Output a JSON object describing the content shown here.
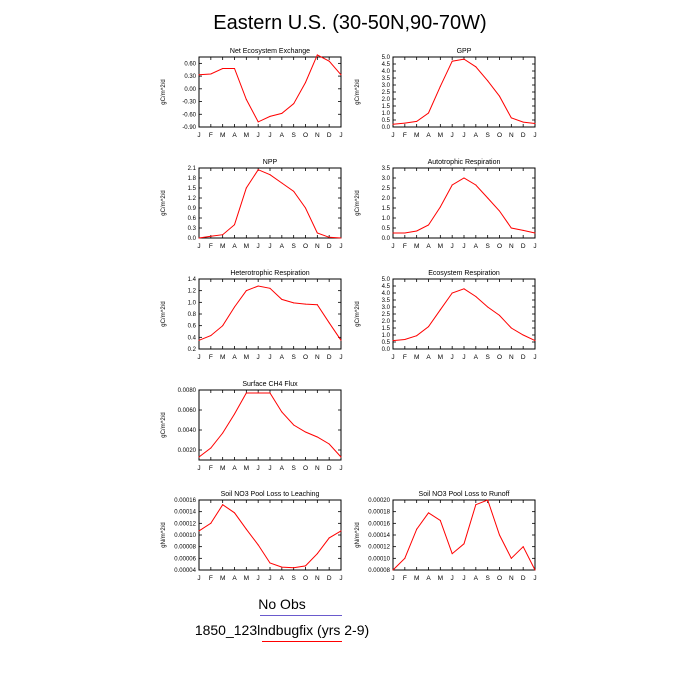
{
  "figure": {
    "title": "Eastern U.S. (30-50N,90-70W)",
    "legend": [
      {
        "label": "No Obs",
        "line_color": "#6a5acd"
      },
      {
        "label": "1850_123lndbugfix (yrs 2-9)",
        "line_color": "#ff0000"
      }
    ]
  },
  "chart_data": [
    {
      "type": "line",
      "title": "Net Ecosystem Exchange",
      "ylabel": "gC/m^2/d",
      "xlabel": "",
      "categories": [
        "J",
        "F",
        "M",
        "A",
        "M",
        "J",
        "J",
        "A",
        "S",
        "O",
        "N",
        "D",
        "J"
      ],
      "ylim": [
        -0.9,
        0.75
      ],
      "yticks": [
        -0.9,
        -0.6,
        -0.3,
        0.0,
        0.3,
        0.6
      ],
      "ytick_labels": [
        "-0.90",
        "-0.60",
        "-0.30",
        "0.00",
        "0.30",
        "0.60"
      ],
      "series": [
        {
          "name": "1850_123lndbugfix (yrs 2-9)",
          "color": "#ff0000",
          "values": [
            0.33,
            0.35,
            0.48,
            0.48,
            -0.25,
            -0.78,
            -0.65,
            -0.58,
            -0.35,
            0.15,
            0.8,
            0.65,
            0.33
          ]
        }
      ]
    },
    {
      "type": "line",
      "title": "GPP",
      "ylabel": "gC/m^2/d",
      "xlabel": "",
      "categories": [
        "J",
        "F",
        "M",
        "A",
        "M",
        "J",
        "J",
        "A",
        "S",
        "O",
        "N",
        "D",
        "J"
      ],
      "ylim": [
        0,
        5
      ],
      "yticks": [
        0,
        0.5,
        1,
        1.5,
        2,
        2.5,
        3,
        3.5,
        4,
        4.5,
        5
      ],
      "ytick_labels": [
        "0.0",
        "0.5",
        "1.0",
        "1.5",
        "2.0",
        "2.5",
        "3.0",
        "3.5",
        "4.0",
        "4.5",
        "5.0"
      ],
      "series": [
        {
          "name": "1850_123lndbugfix (yrs 2-9)",
          "color": "#ff0000",
          "values": [
            0.2,
            0.28,
            0.4,
            1.0,
            2.9,
            4.7,
            4.85,
            4.3,
            3.3,
            2.2,
            0.65,
            0.35,
            0.25
          ]
        }
      ]
    },
    {
      "type": "line",
      "title": "NPP",
      "ylabel": "gC/m^2/d",
      "xlabel": "",
      "categories": [
        "J",
        "F",
        "M",
        "A",
        "M",
        "J",
        "J",
        "A",
        "S",
        "O",
        "N",
        "D",
        "J"
      ],
      "ylim": [
        0,
        2.1
      ],
      "yticks": [
        0,
        0.3,
        0.6,
        0.9,
        1.2,
        1.5,
        1.8,
        2.1
      ],
      "ytick_labels": [
        "0.0",
        "0.3",
        "0.6",
        "0.9",
        "1.2",
        "1.5",
        "1.8",
        "2.1"
      ],
      "series": [
        {
          "name": "1850_123lndbugfix (yrs 2-9)",
          "color": "#ff0000",
          "values": [
            0.0,
            0.05,
            0.1,
            0.4,
            1.5,
            2.05,
            1.9,
            1.65,
            1.4,
            0.9,
            0.15,
            0.02,
            0.0
          ]
        }
      ]
    },
    {
      "type": "line",
      "title": "Autotrophic Respiration",
      "ylabel": "gC/m^2/d",
      "xlabel": "",
      "categories": [
        "J",
        "F",
        "M",
        "A",
        "M",
        "J",
        "J",
        "A",
        "S",
        "O",
        "N",
        "D",
        "J"
      ],
      "ylim": [
        0,
        3.5
      ],
      "yticks": [
        0,
        0.5,
        1,
        1.5,
        2,
        2.5,
        3,
        3.5
      ],
      "ytick_labels": [
        "0.0",
        "0.5",
        "1.0",
        "1.5",
        "2.0",
        "2.5",
        "3.0",
        "3.5"
      ],
      "series": [
        {
          "name": "1850_123lndbugfix (yrs 2-9)",
          "color": "#ff0000",
          "values": [
            0.25,
            0.25,
            0.35,
            0.65,
            1.55,
            2.65,
            3.0,
            2.65,
            2.0,
            1.35,
            0.5,
            0.38,
            0.25
          ]
        }
      ]
    },
    {
      "type": "line",
      "title": "Heterotrophic Respiration",
      "ylabel": "gC/m^2/d",
      "xlabel": "",
      "categories": [
        "J",
        "F",
        "M",
        "A",
        "M",
        "J",
        "J",
        "A",
        "S",
        "O",
        "N",
        "D",
        "J"
      ],
      "ylim": [
        0.2,
        1.4
      ],
      "yticks": [
        0.2,
        0.4,
        0.6,
        0.8,
        1.0,
        1.2,
        1.4
      ],
      "ytick_labels": [
        "0.2",
        "0.4",
        "0.6",
        "0.8",
        "1.0",
        "1.2",
        "1.4"
      ],
      "series": [
        {
          "name": "1850_123lndbugfix (yrs 2-9)",
          "color": "#ff0000",
          "values": [
            0.35,
            0.43,
            0.6,
            0.92,
            1.2,
            1.28,
            1.24,
            1.05,
            0.99,
            0.97,
            0.96,
            0.65,
            0.35
          ]
        }
      ]
    },
    {
      "type": "line",
      "title": "Ecosystem Respiration",
      "ylabel": "gC/m^2/d",
      "xlabel": "",
      "categories": [
        "J",
        "F",
        "M",
        "A",
        "M",
        "J",
        "J",
        "A",
        "S",
        "O",
        "N",
        "D",
        "J"
      ],
      "ylim": [
        0,
        5
      ],
      "yticks": [
        0,
        0.5,
        1,
        1.5,
        2,
        2.5,
        3,
        3.5,
        4,
        4.5,
        5
      ],
      "ytick_labels": [
        "0.0",
        "0.5",
        "1.0",
        "1.5",
        "2.0",
        "2.5",
        "3.0",
        "3.5",
        "4.0",
        "4.5",
        "5.0"
      ],
      "series": [
        {
          "name": "1850_123lndbugfix (yrs 2-9)",
          "color": "#ff0000",
          "values": [
            0.6,
            0.68,
            0.95,
            1.6,
            2.8,
            4.0,
            4.3,
            3.75,
            3.0,
            2.4,
            1.5,
            1.0,
            0.6
          ]
        }
      ]
    },
    {
      "type": "line",
      "title": "Surface CH4 Flux",
      "ylabel": "gC/m^2/d",
      "xlabel": "",
      "categories": [
        "J",
        "F",
        "M",
        "A",
        "M",
        "J",
        "J",
        "A",
        "S",
        "O",
        "N",
        "D",
        "J"
      ],
      "ylim": [
        0.001,
        0.008
      ],
      "yticks": [
        0.002,
        0.004,
        0.006,
        0.008
      ],
      "ytick_labels": [
        "0.0020",
        "0.0040",
        "0.0060",
        "0.0080"
      ],
      "series": [
        {
          "name": "1850_123lndbugfix (yrs 2-9)",
          "color": "#ff0000",
          "values": [
            0.0013,
            0.0022,
            0.0037,
            0.0056,
            0.0077,
            0.0077,
            0.0077,
            0.0058,
            0.0045,
            0.0038,
            0.0033,
            0.0026,
            0.0013
          ]
        }
      ]
    },
    {
      "type": "line",
      "title": "Soil NO3 Pool Loss to Leaching",
      "ylabel": "gN/m^2/d",
      "xlabel": "",
      "categories": [
        "J",
        "F",
        "M",
        "A",
        "M",
        "J",
        "J",
        "A",
        "S",
        "O",
        "N",
        "D",
        "J"
      ],
      "ylim": [
        4e-05,
        0.00016
      ],
      "yticks": [
        4e-05,
        6e-05,
        8e-05,
        0.0001,
        0.00012,
        0.00014,
        0.00016
      ],
      "ytick_labels": [
        "0.00004",
        "0.00006",
        "0.00008",
        "0.00010",
        "0.00012",
        "0.00014",
        "0.00016"
      ],
      "series": [
        {
          "name": "1850_123lndbugfix (yrs 2-9)",
          "color": "#ff0000",
          "values": [
            0.000107,
            0.00012,
            0.000152,
            0.000138,
            0.00011,
            8.3e-05,
            5.2e-05,
            4.5e-05,
            4.4e-05,
            4.7e-05,
            6.8e-05,
            9.5e-05,
            0.000107
          ]
        }
      ]
    },
    {
      "type": "line",
      "title": "Soil NO3 Pool Loss to Runoff",
      "ylabel": "gN/m^2/d",
      "xlabel": "",
      "categories": [
        "J",
        "F",
        "M",
        "A",
        "M",
        "J",
        "J",
        "A",
        "S",
        "O",
        "N",
        "D",
        "J"
      ],
      "ylim": [
        8e-05,
        0.0002
      ],
      "yticks": [
        8e-05,
        0.0001,
        0.00012,
        0.00014,
        0.00016,
        0.00018,
        0.0002
      ],
      "ytick_labels": [
        "0.00008",
        "0.00010",
        "0.00012",
        "0.00014",
        "0.00016",
        "0.00018",
        "0.00020"
      ],
      "series": [
        {
          "name": "1850_123lndbugfix (yrs 2-9)",
          "color": "#ff0000",
          "values": [
            8e-05,
            0.0001,
            0.00015,
            0.000178,
            0.000165,
            0.000108,
            0.000125,
            0.000192,
            0.0002,
            0.00014,
            0.0001,
            0.00012,
            8e-05
          ]
        }
      ]
    }
  ]
}
